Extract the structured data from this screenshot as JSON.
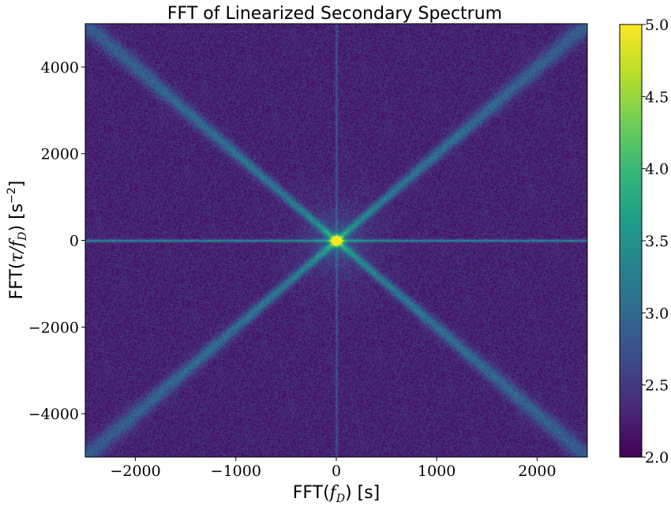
{
  "chart_data": {
    "type": "heatmap",
    "title": "FFT of Linearized Secondary Spectrum",
    "xlabel": {
      "prefix": "FFT(",
      "symbol": "f",
      "subscript": "D",
      "suffix": ") [s]"
    },
    "ylabel": {
      "prefix": "FFT(",
      "symbol": "τ/f",
      "subscript": "D",
      "suffix": ") [s",
      "superscript": "−2",
      "close": "]"
    },
    "xlim": [
      -2500,
      2500
    ],
    "ylim": [
      -5000,
      5000
    ],
    "x_ticks": [
      {
        "value": -2000,
        "label": "−2000"
      },
      {
        "value": -1000,
        "label": "−1000"
      },
      {
        "value": 0,
        "label": "0"
      },
      {
        "value": 1000,
        "label": "1000"
      },
      {
        "value": 2000,
        "label": "2000"
      }
    ],
    "y_ticks": [
      {
        "value": 4000,
        "label": "4000"
      },
      {
        "value": 2000,
        "label": "2000"
      },
      {
        "value": 0,
        "label": "0"
      },
      {
        "value": -2000,
        "label": "−2000"
      },
      {
        "value": -4000,
        "label": "−4000"
      }
    ],
    "colorbar": {
      "colormap": "viridis",
      "range": [
        2.0,
        5.0
      ],
      "ticks": [
        {
          "value": 5.0,
          "label": "5.0"
        },
        {
          "value": 4.5,
          "label": "4.5"
        },
        {
          "value": 4.0,
          "label": "4.0"
        },
        {
          "value": 3.5,
          "label": "3.5"
        },
        {
          "value": 3.0,
          "label": "3.0"
        },
        {
          "value": 2.5,
          "label": "2.5"
        },
        {
          "value": 2.0,
          "label": "2.0"
        }
      ]
    },
    "features": {
      "background_level": 2.3,
      "peak_at": [
        0,
        0
      ],
      "peak_level": 5.0,
      "line_y_equals_0_level": 3.4,
      "line_x_equals_0_level": 2.9,
      "diagonal_slope": 2.0,
      "diagonal_level": 3.2
    },
    "grid": false
  },
  "colors": {
    "background": "#ffffff",
    "axis": "#000000",
    "viridis_stops": [
      "#440154",
      "#482878",
      "#3e4989",
      "#31688e",
      "#26828e",
      "#1f9e89",
      "#35b779",
      "#6ece58",
      "#b5de2b",
      "#fde725"
    ]
  }
}
